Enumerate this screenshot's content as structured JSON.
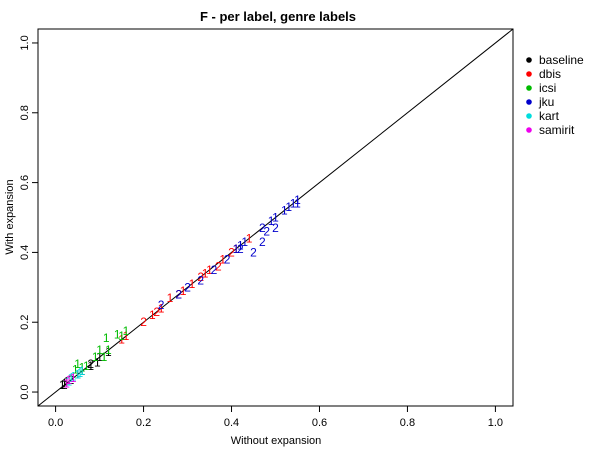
{
  "chart_data": {
    "type": "scatter",
    "title": "F - per label, genre labels",
    "xlabel": "Without expansion",
    "ylabel": "With expansion",
    "xlim": [
      -0.04,
      1.04
    ],
    "ylim": [
      -0.04,
      1.04
    ],
    "xticks": [
      0.0,
      0.2,
      0.4,
      0.6,
      0.8,
      1.0
    ],
    "yticks": [
      0.0,
      0.2,
      0.4,
      0.6,
      0.8,
      1.0
    ],
    "xtick_labels": [
      "0.0",
      "0.2",
      "0.4",
      "0.6",
      "0.8",
      "1.0"
    ],
    "ytick_labels": [
      "0.0",
      "0.2",
      "0.4",
      "0.6",
      "0.8",
      "1.0"
    ],
    "grid": false,
    "reference_line": "y = x",
    "legend_position": "right",
    "series": [
      {
        "name": "baseline",
        "color": "#000000",
        "points": [
          {
            "x": 0.015,
            "y": 0.02,
            "label": "1"
          },
          {
            "x": 0.02,
            "y": 0.025,
            "label": "1"
          },
          {
            "x": 0.025,
            "y": 0.03,
            "label": "1"
          },
          {
            "x": 0.05,
            "y": 0.05,
            "label": "1"
          },
          {
            "x": 0.06,
            "y": 0.06,
            "label": "1"
          },
          {
            "x": 0.08,
            "y": 0.075,
            "label": "1"
          },
          {
            "x": 0.095,
            "y": 0.085,
            "label": "1"
          },
          {
            "x": 0.1,
            "y": 0.1,
            "label": "1"
          },
          {
            "x": 0.12,
            "y": 0.115,
            "label": "1"
          },
          {
            "x": 0.02,
            "y": 0.02,
            "label": "2"
          },
          {
            "x": 0.035,
            "y": 0.035,
            "label": "2"
          },
          {
            "x": 0.08,
            "y": 0.08,
            "label": "2"
          }
        ]
      },
      {
        "name": "dbis",
        "color": "#ff0000",
        "points": [
          {
            "x": 0.15,
            "y": 0.15,
            "label": "1"
          },
          {
            "x": 0.16,
            "y": 0.16,
            "label": "1"
          },
          {
            "x": 0.22,
            "y": 0.22,
            "label": "1"
          },
          {
            "x": 0.24,
            "y": 0.24,
            "label": "1"
          },
          {
            "x": 0.26,
            "y": 0.27,
            "label": "1"
          },
          {
            "x": 0.29,
            "y": 0.29,
            "label": "1"
          },
          {
            "x": 0.31,
            "y": 0.31,
            "label": "1"
          },
          {
            "x": 0.34,
            "y": 0.34,
            "label": "1"
          },
          {
            "x": 0.35,
            "y": 0.35,
            "label": "1"
          },
          {
            "x": 0.38,
            "y": 0.38,
            "label": "1"
          },
          {
            "x": 0.41,
            "y": 0.41,
            "label": "1"
          },
          {
            "x": 0.44,
            "y": 0.44,
            "label": "1"
          },
          {
            "x": 0.2,
            "y": 0.2,
            "label": "2"
          },
          {
            "x": 0.23,
            "y": 0.23,
            "label": "2"
          },
          {
            "x": 0.28,
            "y": 0.28,
            "label": "2"
          },
          {
            "x": 0.33,
            "y": 0.33,
            "label": "2"
          },
          {
            "x": 0.37,
            "y": 0.36,
            "label": "2"
          },
          {
            "x": 0.4,
            "y": 0.4,
            "label": "2"
          }
        ]
      },
      {
        "name": "icsi",
        "color": "#00bb00",
        "points": [
          {
            "x": 0.045,
            "y": 0.065,
            "label": "1"
          },
          {
            "x": 0.05,
            "y": 0.08,
            "label": "1"
          },
          {
            "x": 0.06,
            "y": 0.07,
            "label": "1"
          },
          {
            "x": 0.07,
            "y": 0.075,
            "label": "1"
          },
          {
            "x": 0.09,
            "y": 0.1,
            "label": "1"
          },
          {
            "x": 0.11,
            "y": 0.1,
            "label": "1"
          },
          {
            "x": 0.115,
            "y": 0.155,
            "label": "1"
          },
          {
            "x": 0.12,
            "y": 0.12,
            "label": "1"
          },
          {
            "x": 0.14,
            "y": 0.165,
            "label": "1"
          },
          {
            "x": 0.15,
            "y": 0.16,
            "label": "1"
          },
          {
            "x": 0.16,
            "y": 0.175,
            "label": "1"
          },
          {
            "x": 0.1,
            "y": 0.12,
            "label": "1"
          }
        ]
      },
      {
        "name": "jku",
        "color": "#0000cc",
        "points": [
          {
            "x": 0.24,
            "y": 0.25,
            "label": "2"
          },
          {
            "x": 0.28,
            "y": 0.28,
            "label": "2"
          },
          {
            "x": 0.3,
            "y": 0.3,
            "label": "2"
          },
          {
            "x": 0.33,
            "y": 0.32,
            "label": "2"
          },
          {
            "x": 0.36,
            "y": 0.35,
            "label": "2"
          },
          {
            "x": 0.39,
            "y": 0.38,
            "label": "2"
          },
          {
            "x": 0.42,
            "y": 0.41,
            "label": "2"
          },
          {
            "x": 0.45,
            "y": 0.4,
            "label": "2"
          },
          {
            "x": 0.47,
            "y": 0.43,
            "label": "2"
          },
          {
            "x": 0.48,
            "y": 0.46,
            "label": "2"
          },
          {
            "x": 0.5,
            "y": 0.47,
            "label": "2"
          },
          {
            "x": 0.47,
            "y": 0.47,
            "label": "2"
          },
          {
            "x": 0.41,
            "y": 0.41,
            "label": "1"
          },
          {
            "x": 0.42,
            "y": 0.42,
            "label": "1"
          },
          {
            "x": 0.43,
            "y": 0.43,
            "label": "1"
          },
          {
            "x": 0.49,
            "y": 0.49,
            "label": "1"
          },
          {
            "x": 0.5,
            "y": 0.5,
            "label": "1"
          },
          {
            "x": 0.52,
            "y": 0.52,
            "label": "1"
          },
          {
            "x": 0.53,
            "y": 0.53,
            "label": "1"
          },
          {
            "x": 0.54,
            "y": 0.54,
            "label": "1"
          },
          {
            "x": 0.55,
            "y": 0.55,
            "label": "1"
          },
          {
            "x": 0.55,
            "y": 0.54,
            "label": "1"
          }
        ]
      },
      {
        "name": "kart",
        "color": "#00dddd",
        "points": [
          {
            "x": 0.03,
            "y": 0.03,
            "label": "1"
          },
          {
            "x": 0.035,
            "y": 0.04,
            "label": "1"
          },
          {
            "x": 0.04,
            "y": 0.045,
            "label": "1"
          },
          {
            "x": 0.05,
            "y": 0.05,
            "label": "1"
          },
          {
            "x": 0.055,
            "y": 0.055,
            "label": "1"
          },
          {
            "x": 0.06,
            "y": 0.06,
            "label": "1"
          }
        ]
      },
      {
        "name": "samirit",
        "color": "#ee00ee",
        "points": [
          {
            "x": 0.025,
            "y": 0.025,
            "label": "1"
          },
          {
            "x": 0.03,
            "y": 0.035,
            "label": "1"
          },
          {
            "x": 0.04,
            "y": 0.04,
            "label": "1"
          }
        ]
      }
    ]
  }
}
